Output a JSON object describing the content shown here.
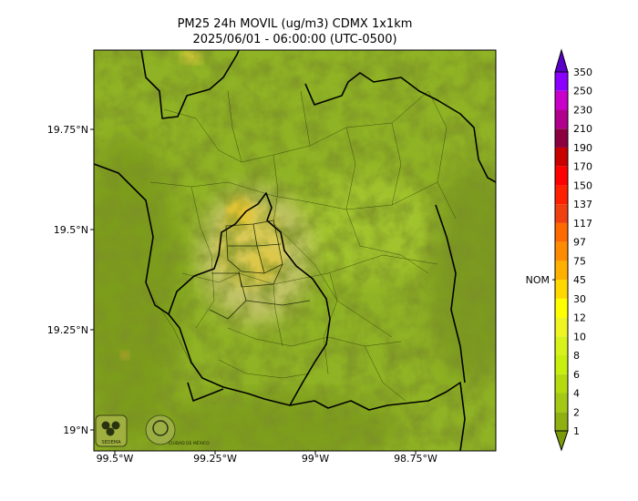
{
  "title_line1": "PM25 24h MOVIL (ug/m3) CDMX 1x1km",
  "title_line2": "2025/06/01 - 06:00:00 (UTC-0500)",
  "lat_ticks": [
    "19.75°N",
    "19.5°N",
    "19.25°N",
    "19°N"
  ],
  "lon_ticks": [
    "99.5°W",
    "99.25°W",
    "99°W",
    "98.75°W"
  ],
  "colorbar": {
    "levels": [
      "1",
      "2",
      "4",
      "6",
      "8",
      "10",
      "12",
      "30",
      "45",
      "75",
      "97",
      "117",
      "137",
      "150",
      "170",
      "190",
      "210",
      "230",
      "250",
      "350"
    ],
    "colors": [
      "#7a9a0a",
      "#8fb010",
      "#a4c814",
      "#b5db10",
      "#c7ee0c",
      "#d6f21a",
      "#eef520",
      "#ffff00",
      "#ffd800",
      "#ffb000",
      "#ff8c00",
      "#ff6a00",
      "#f04010",
      "#ff2000",
      "#ff0000",
      "#c80000",
      "#8c0040",
      "#b0008c",
      "#c800c8",
      "#8c00ff",
      "#5a00c8"
    ],
    "nom_label": "NOM",
    "nom_level": "45"
  },
  "logos": {
    "sedema_text": "SEDEMA",
    "ciudad_text": "CIUDAD DE MÉXICO"
  }
}
